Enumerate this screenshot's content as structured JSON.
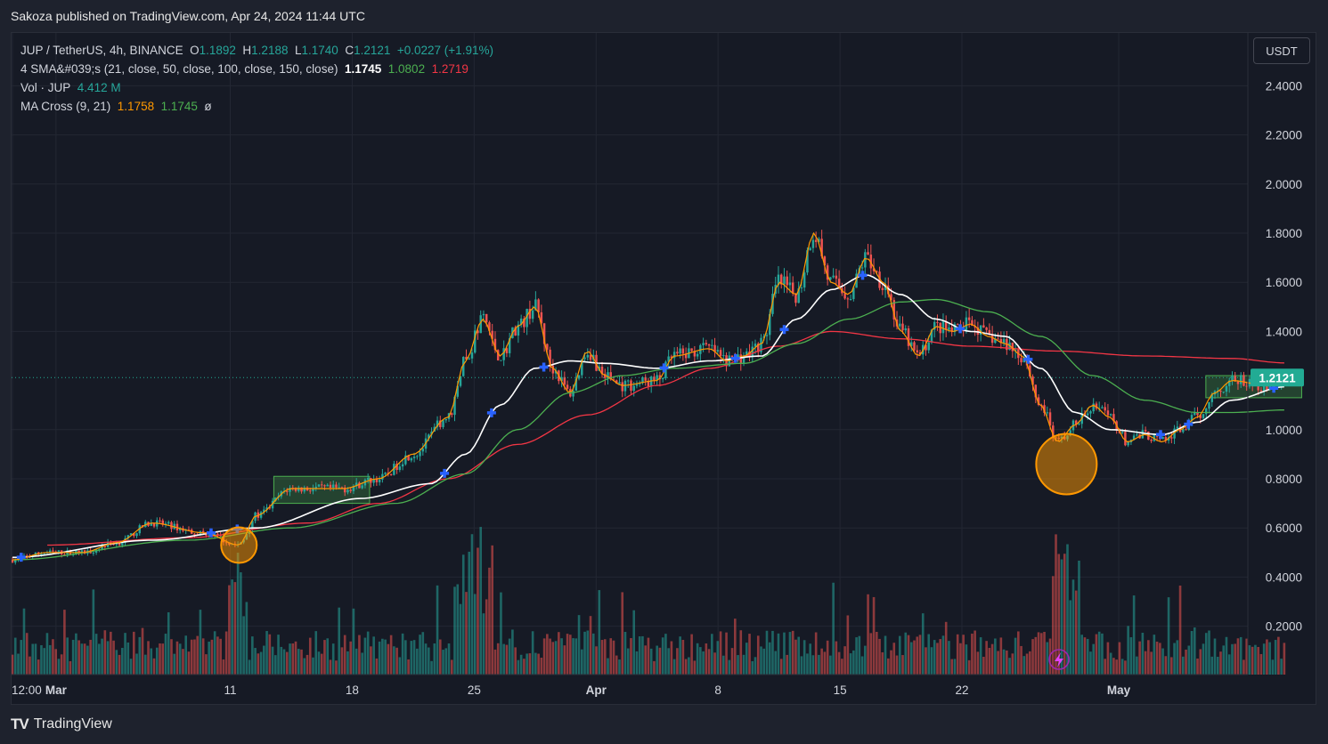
{
  "publisher": "Sakoza published on TradingView.com, Apr 24, 2024 11:44 UTC",
  "currency": "USDT",
  "brand": "TradingView",
  "legend": {
    "symbol": "JUP / TetherUS, 4h, BINANCE",
    "o_label": "O",
    "o": "1.1892",
    "h_label": "H",
    "h": "1.2188",
    "l_label": "L",
    "l": "1.1740",
    "c_label": "C",
    "c": "1.2121",
    "change": "+0.0227 (+1.91%)",
    "sma_label": "4 SMA&#039;s (21, close, 50, close, 100, close, 150, close)",
    "sma1": "1.1745",
    "sma2": "1.0802",
    "sma3": "1.2719",
    "vol_label": "Vol · JUP",
    "vol": "4.412 M",
    "macross_label": "MA Cross (9, 21)",
    "macross1": "1.1758",
    "macross2": "1.1745",
    "macross3": "ø"
  },
  "colors": {
    "up": "#26a69a",
    "down": "#ef5350",
    "sma_white": "#ffffff",
    "sma_green": "#4caf50",
    "sma_red": "#f23645",
    "ma_orange": "#ff9800",
    "price_badge": "#22ab94",
    "marker": "#2962ff",
    "highlight": "#ff9800"
  },
  "chart_data": {
    "type": "candlestick",
    "symbol": "JUP / TetherUS",
    "interval": "4h",
    "exchange": "BINANCE",
    "y_ticks": [
      "2.4000",
      "2.2000",
      "2.0000",
      "1.8000",
      "1.6000",
      "1.4000",
      "1.0000",
      "0.8000",
      "0.6000",
      "0.4000",
      "0.2000"
    ],
    "ylim": [
      0.0,
      2.5
    ],
    "x_ticks": [
      "12:00",
      "Mar",
      "11",
      "18",
      "25",
      "Apr",
      "8",
      "15",
      "22",
      "May"
    ],
    "x_tick_days": [
      0,
      2.5,
      12.5,
      19.5,
      26.5,
      33.5,
      40.5,
      47.5,
      54.5,
      63.5
    ],
    "last_price": "1.2121",
    "series_anchors": {
      "close": [
        [
          0,
          0.47
        ],
        [
          2,
          0.5
        ],
        [
          4,
          0.5
        ],
        [
          6,
          0.54
        ],
        [
          8,
          0.62
        ],
        [
          11,
          0.58
        ],
        [
          13,
          0.53
        ],
        [
          14,
          0.65
        ],
        [
          16,
          0.76
        ],
        [
          19,
          0.76
        ],
        [
          21,
          0.8
        ],
        [
          23,
          0.9
        ],
        [
          25,
          1.05
        ],
        [
          26,
          1.28
        ],
        [
          27,
          1.45
        ],
        [
          28,
          1.3
        ],
        [
          29,
          1.42
        ],
        [
          30,
          1.5
        ],
        [
          31,
          1.25
        ],
        [
          32,
          1.15
        ],
        [
          33,
          1.32
        ],
        [
          34,
          1.22
        ],
        [
          35,
          1.18
        ],
        [
          37,
          1.2
        ],
        [
          38,
          1.3
        ],
        [
          40,
          1.33
        ],
        [
          41,
          1.28
        ],
        [
          42,
          1.3
        ],
        [
          43,
          1.35
        ],
        [
          44,
          1.6
        ],
        [
          45,
          1.55
        ],
        [
          46,
          1.8
        ],
        [
          47,
          1.6
        ],
        [
          48,
          1.55
        ],
        [
          49,
          1.7
        ],
        [
          50,
          1.6
        ],
        [
          51,
          1.4
        ],
        [
          52,
          1.3
        ],
        [
          53,
          1.42
        ],
        [
          54,
          1.4
        ],
        [
          55,
          1.43
        ],
        [
          56,
          1.38
        ],
        [
          57,
          1.35
        ],
        [
          58,
          1.3
        ],
        [
          59,
          1.1
        ],
        [
          60,
          0.95
        ],
        [
          61,
          1.02
        ],
        [
          62,
          1.1
        ],
        [
          63,
          1.05
        ],
        [
          64,
          0.95
        ],
        [
          65,
          0.98
        ],
        [
          66,
          0.95
        ],
        [
          67,
          1.0
        ],
        [
          68,
          1.05
        ],
        [
          69,
          1.15
        ],
        [
          70,
          1.2
        ],
        [
          72,
          1.18
        ],
        [
          73,
          1.21
        ]
      ],
      "sma21": [
        [
          0,
          0.48
        ],
        [
          8,
          0.55
        ],
        [
          14,
          0.6
        ],
        [
          20,
          0.72
        ],
        [
          24,
          0.78
        ],
        [
          26,
          0.9
        ],
        [
          28,
          1.1
        ],
        [
          30,
          1.25
        ],
        [
          32,
          1.28
        ],
        [
          34,
          1.27
        ],
        [
          37,
          1.25
        ],
        [
          40,
          1.28
        ],
        [
          43,
          1.3
        ],
        [
          45,
          1.45
        ],
        [
          47,
          1.57
        ],
        [
          49,
          1.63
        ],
        [
          51,
          1.55
        ],
        [
          53,
          1.45
        ],
        [
          55,
          1.4
        ],
        [
          57,
          1.38
        ],
        [
          59,
          1.25
        ],
        [
          61,
          1.07
        ],
        [
          63,
          1.0
        ],
        [
          66,
          0.98
        ],
        [
          68,
          1.03
        ],
        [
          70,
          1.12
        ],
        [
          73,
          1.1745
        ]
      ],
      "sma50": [
        [
          0,
          0.47
        ],
        [
          10,
          0.55
        ],
        [
          16,
          0.6
        ],
        [
          22,
          0.7
        ],
        [
          26,
          0.82
        ],
        [
          29,
          1.0
        ],
        [
          32,
          1.15
        ],
        [
          35,
          1.22
        ],
        [
          38,
          1.25
        ],
        [
          42,
          1.27
        ],
        [
          45,
          1.35
        ],
        [
          48,
          1.45
        ],
        [
          51,
          1.52
        ],
        [
          53,
          1.53
        ],
        [
          56,
          1.48
        ],
        [
          59,
          1.38
        ],
        [
          62,
          1.22
        ],
        [
          65,
          1.12
        ],
        [
          68,
          1.07
        ],
        [
          70,
          1.07
        ],
        [
          73,
          1.0802
        ]
      ],
      "sma150": [
        [
          2,
          0.53
        ],
        [
          10,
          0.56
        ],
        [
          17,
          0.62
        ],
        [
          21,
          0.7
        ],
        [
          25,
          0.8
        ],
        [
          29,
          0.94
        ],
        [
          33,
          1.06
        ],
        [
          37,
          1.18
        ],
        [
          40,
          1.25
        ],
        [
          44,
          1.34
        ],
        [
          47,
          1.4
        ],
        [
          51,
          1.37
        ],
        [
          55,
          1.34
        ],
        [
          60,
          1.32
        ],
        [
          65,
          1.3
        ],
        [
          70,
          1.29
        ],
        [
          73,
          1.2719
        ]
      ]
    },
    "highlight_circles": [
      {
        "day": 13,
        "price": 0.53
      },
      {
        "day": 60.5,
        "price": 0.86
      }
    ],
    "consolidation_boxes": [
      {
        "day_start": 15,
        "day_end": 20.5,
        "price_low": 0.7,
        "price_high": 0.81
      },
      {
        "day_start": 68.5,
        "day_end": 74,
        "price_low": 1.13,
        "price_high": 1.22
      }
    ]
  }
}
